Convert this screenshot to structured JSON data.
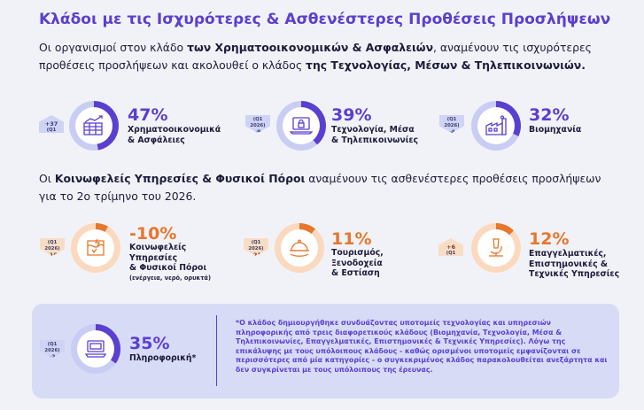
{
  "title": "Κλάδοι με τις Ισχυρότερες & Ασθενέστερες Προθέσεις Προσλήψεων",
  "intro_strong": {
    "pre": "Οι οργανισμοί στον κλάδο ",
    "b1": "των Χρηματοοικονομικών & Ασφαλειών",
    "mid": ", αναμένουν τις ισχυρότερες προθέσεις προσλήψεων και ακολουθεί ο κλάδος ",
    "b2": "της Τεχνολογίας, Μέσων & Τηλεπικοινωνιών."
  },
  "intro_weak": {
    "pre": "Οι ",
    "b1": "Κοινωφελείς Υπηρεσίες & Φυσικοί Πόροι",
    "post": " αναμένουν τις ασθενέστερες προθέσεις προσλήψεων για το 2ο τρίμηνο του 2026."
  },
  "sectors": [
    {
      "badge_q": "(Q1 2026)",
      "badge_delta": "+37",
      "percent": "47%",
      "label_line1": "Χρηματοοικονομικά",
      "label_line2": "& Ασφάλειες",
      "icon": "finance-chart-icon"
    },
    {
      "badge_q": "(Q1 2026)",
      "badge_delta": "-9",
      "percent": "39%",
      "label_line1": "Τεχνολογία, Μέσα",
      "label_line2": "& Τηλεπικοινωνίες",
      "icon": "laptop-lock-icon"
    },
    {
      "badge_q": "(Q1 2026)",
      "badge_delta": "-4",
      "percent": "32%",
      "label_line1": "Βιομηχανία",
      "label_line2": "",
      "icon": "factory-icon"
    },
    {
      "badge_q": "(Q1 2026)",
      "badge_delta": "-10",
      "percent": "-10%",
      "label_line1": "Κοινωφελείς",
      "label_line2": "Υπηρεσίες",
      "label_line3": "& Φυσικοί Πόροι",
      "label_note": "(ενέργεια, νερό, ορυκτά)",
      "icon": "utilities-icon"
    },
    {
      "badge_q": "(Q1 2026)",
      "badge_delta": "-21",
      "percent": "11%",
      "label_line1": "Τουρισμός,",
      "label_line2": "Ξενοδοχεία",
      "label_line3": "& Εστίαση",
      "icon": "cloche-icon"
    },
    {
      "badge_q": "(Q1 2026)",
      "badge_delta": "+6",
      "percent": "12%",
      "label_line1": "Επαγγελματικές,",
      "label_line2": "Επιστημονικές &",
      "label_line3": "Τεχνικές Υπηρεσίες",
      "icon": "microscope-icon"
    },
    {
      "badge_q": "(Q1 2026)",
      "badge_delta": "-2",
      "percent": "35%",
      "label_line1": "Πληροφορική*",
      "label_line2": "",
      "icon": "computer-icon"
    }
  ],
  "footnote": "*Ο κλάδος δημιουργήθηκε συνδυάζοντας υποτομείς τεχνολογίας και υπηρεσιών πληροφορικής από τρεις διαφορετικούς κλάδους (Βιομηχανία, Τεχνολογία, Μέσα & Τηλεπικοινωνίες, Επαγγελματικές, Επιστημονικές & Τεχνικές Υπηρεσίες). Λόγω της επικάλυψης με τους υπόλοιπους κλάδους - καθώς ορισμένοι υποτομείς εμφανίζονται σε περισσότερες από μία κατηγορίες - ο συγκεκριμένος κλάδος παρακολουθείται ανεξάρτητα και δεν συγκρίνεται με τους υπόλοιπους της έρευνας.",
  "colors": {
    "accent": "#5b3fd0",
    "orange": "#e8762b",
    "panel": "#d7dbf6"
  }
}
